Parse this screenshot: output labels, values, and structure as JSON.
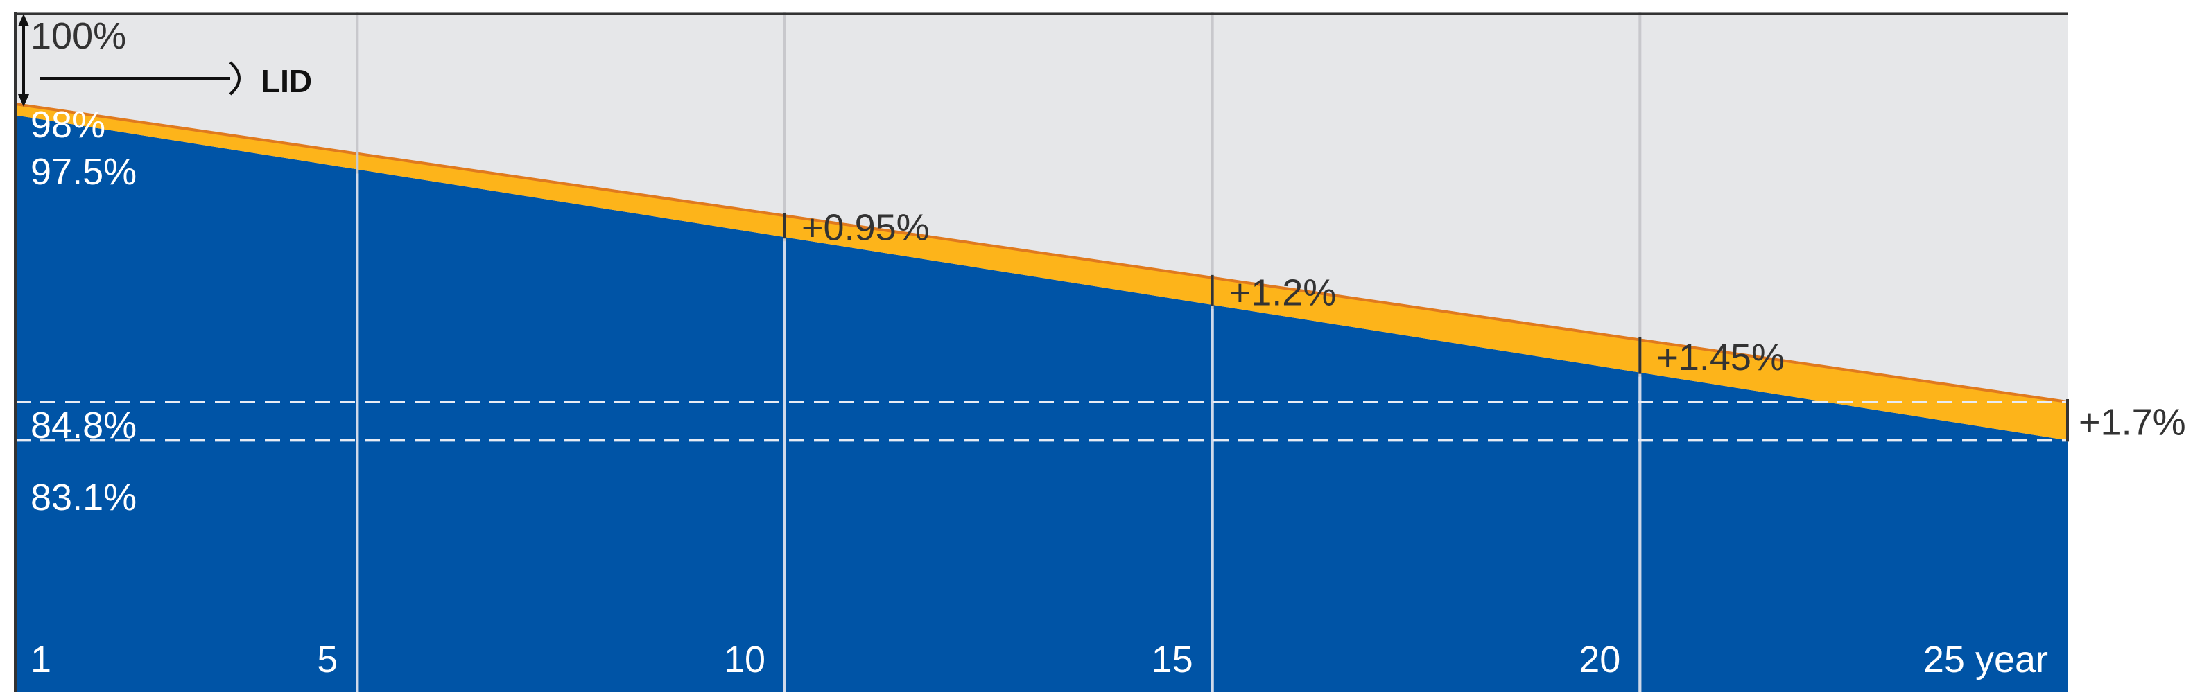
{
  "chart_data": {
    "type": "area",
    "title": "",
    "xlabel": "",
    "ylabel": "",
    "x_ticks": [
      "1",
      "5",
      "10",
      "15",
      "20",
      "25 year"
    ],
    "y_reference_labels": {
      "start_total": "100%",
      "after_lid": "98%",
      "guaranteed_start": "97.5%",
      "end_total": "84.8%",
      "guaranteed_end": "83.1%"
    },
    "annotation": "LID",
    "series": [
      {
        "points": [
          {
            "year": 1,
            "value": 97.5
          },
          {
            "year": 25,
            "value": 83.1
          }
        ]
      },
      {
        "points": [
          {
            "year": 1,
            "value": 98.0
          },
          {
            "year": 25,
            "value": 84.8
          }
        ]
      }
    ],
    "gains": [
      {
        "year": 10,
        "label": "+0.95%"
      },
      {
        "year": 15,
        "label": "+1.2%"
      },
      {
        "year": 20,
        "label": "+1.45%"
      },
      {
        "year": 25,
        "label": "+1.7%"
      }
    ],
    "colors": {
      "background": "#e6e7e9",
      "guaranteed_area": "#0054a6",
      "gain_band": "#fdb41a",
      "band_edge": "#e07a1e",
      "text_dark": "#333333",
      "text_light": "#ffffff"
    }
  }
}
